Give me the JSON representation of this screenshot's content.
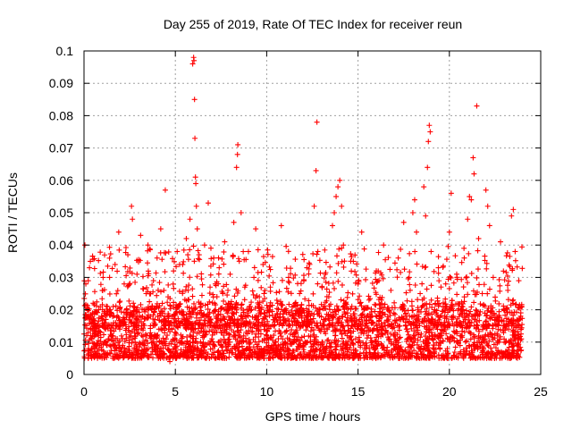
{
  "chart_data": {
    "type": "scatter",
    "title": "Day 255 of 2019, Rate Of TEC Index for receiver reun",
    "xlabel": "GPS time / hours",
    "ylabel": "ROTI / TECUs",
    "xlim": [
      0,
      25
    ],
    "ylim": [
      0,
      0.1
    ],
    "x_ticks": [
      0,
      5,
      10,
      15,
      20,
      25
    ],
    "x_tick_labels": [
      "0",
      "5",
      "10",
      "15",
      "20",
      "25"
    ],
    "y_ticks": [
      0,
      0.01,
      0.02,
      0.03,
      0.04,
      0.05,
      0.06,
      0.07,
      0.08,
      0.09,
      0.1
    ],
    "y_tick_labels": [
      "0",
      "0.01",
      "0.02",
      "0.03",
      "0.04",
      "0.05",
      "0.06",
      "0.07",
      "0.08",
      "0.09",
      "0.1"
    ],
    "grid": true,
    "marker": "+",
    "color": "#ff0000",
    "series": [
      {
        "points": [
          [
            0.05,
            0.04
          ],
          [
            0.1,
            0.028
          ],
          [
            0.15,
            0.012
          ],
          [
            0.2,
            0.018
          ],
          [
            0.25,
            0.008
          ],
          [
            0.3,
            0.033
          ],
          [
            0.35,
            0.014
          ],
          [
            0.4,
            0.011
          ],
          [
            0.5,
            0.022
          ],
          [
            0.6,
            0.015
          ],
          [
            0.7,
            0.009
          ],
          [
            0.8,
            0.02
          ],
          [
            0.9,
            0.013
          ],
          [
            1.0,
            0.026
          ],
          [
            1.1,
            0.01
          ],
          [
            1.2,
            0.017
          ],
          [
            1.3,
            0.006
          ],
          [
            1.4,
            0.03
          ],
          [
            1.5,
            0.012
          ],
          [
            1.6,
            0.021
          ],
          [
            1.7,
            0.034
          ],
          [
            1.8,
            0.008
          ],
          [
            1.9,
            0.044
          ],
          [
            2.0,
            0.016
          ],
          [
            2.1,
            0.011
          ],
          [
            2.2,
            0.028
          ],
          [
            2.3,
            0.019
          ],
          [
            2.4,
            0.037
          ],
          [
            2.5,
            0.013
          ],
          [
            2.6,
            0.052
          ],
          [
            2.65,
            0.048
          ],
          [
            2.7,
            0.022
          ],
          [
            2.8,
            0.01
          ],
          [
            2.9,
            0.031
          ],
          [
            3.0,
            0.015
          ],
          [
            3.1,
            0.043
          ],
          [
            3.2,
            0.018
          ],
          [
            3.3,
            0.009
          ],
          [
            3.4,
            0.025
          ],
          [
            3.5,
            0.04
          ],
          [
            3.6,
            0.012
          ],
          [
            3.7,
            0.02
          ],
          [
            3.8,
            0.029
          ],
          [
            3.9,
            0.007
          ],
          [
            4.0,
            0.036
          ],
          [
            4.1,
            0.014
          ],
          [
            4.2,
            0.045
          ],
          [
            4.3,
            0.019
          ],
          [
            4.45,
            0.057
          ],
          [
            4.5,
            0.011
          ],
          [
            4.6,
            0.024
          ],
          [
            4.7,
            0.004
          ],
          [
            4.8,
            0.016
          ],
          [
            4.9,
            0.032
          ],
          [
            5.0,
            0.013
          ],
          [
            5.1,
            0.038
          ],
          [
            5.2,
            0.021
          ],
          [
            5.3,
            0.01
          ],
          [
            5.4,
            0.034
          ],
          [
            5.5,
            0.017
          ],
          [
            5.6,
            0.042
          ],
          [
            5.7,
            0.026
          ],
          [
            5.8,
            0.048
          ],
          [
            5.9,
            0.015
          ],
          [
            5.95,
            0.096
          ],
          [
            6.0,
            0.098
          ],
          [
            6.02,
            0.097
          ],
          [
            6.05,
            0.085
          ],
          [
            6.07,
            0.073
          ],
          [
            6.1,
            0.061
          ],
          [
            6.12,
            0.059
          ],
          [
            6.15,
            0.052
          ],
          [
            6.2,
            0.045
          ],
          [
            6.3,
            0.037
          ],
          [
            6.4,
            0.022
          ],
          [
            6.5,
            0.012
          ],
          [
            6.6,
            0.04
          ],
          [
            6.7,
            0.018
          ],
          [
            6.8,
            0.053
          ],
          [
            6.9,
            0.027
          ],
          [
            7.0,
            0.011
          ],
          [
            7.1,
            0.036
          ],
          [
            7.2,
            0.02
          ],
          [
            7.3,
            0.015
          ],
          [
            7.4,
            0.033
          ],
          [
            7.5,
            0.009
          ],
          [
            7.6,
            0.025
          ],
          [
            7.7,
            0.041
          ],
          [
            7.8,
            0.014
          ],
          [
            7.9,
            0.022
          ],
          [
            8.0,
            0.031
          ],
          [
            8.1,
            0.018
          ],
          [
            8.2,
            0.047
          ],
          [
            8.3,
            0.012
          ],
          [
            8.35,
            0.064
          ],
          [
            8.4,
            0.068
          ],
          [
            8.42,
            0.071
          ],
          [
            8.5,
            0.035
          ],
          [
            8.6,
            0.05
          ],
          [
            8.7,
            0.016
          ],
          [
            8.8,
            0.027
          ],
          [
            8.9,
            0.01
          ],
          [
            9.0,
            0.038
          ],
          [
            9.1,
            0.021
          ],
          [
            9.2,
            0.013
          ],
          [
            9.3,
            0.03
          ],
          [
            9.4,
            0.045
          ],
          [
            9.5,
            0.017
          ],
          [
            9.6,
            0.024
          ],
          [
            9.7,
            0.008
          ],
          [
            9.8,
            0.034
          ],
          [
            9.9,
            0.019
          ],
          [
            10.0,
            0.012
          ],
          [
            10.2,
            0.027
          ],
          [
            10.4,
            0.015
          ],
          [
            10.6,
            0.022
          ],
          [
            10.8,
            0.046
          ],
          [
            11.0,
            0.01
          ],
          [
            11.2,
            0.03
          ],
          [
            11.4,
            0.018
          ],
          [
            11.6,
            0.013
          ],
          [
            11.8,
            0.025
          ],
          [
            12.0,
            0.009
          ],
          [
            12.2,
            0.033
          ],
          [
            12.4,
            0.017
          ],
          [
            12.6,
            0.052
          ],
          [
            12.7,
            0.063
          ],
          [
            12.75,
            0.078
          ],
          [
            12.8,
            0.038
          ],
          [
            12.9,
            0.02
          ],
          [
            13.0,
            0.014
          ],
          [
            13.2,
            0.031
          ],
          [
            13.4,
            0.024
          ],
          [
            13.6,
            0.046
          ],
          [
            13.7,
            0.05
          ],
          [
            13.8,
            0.055
          ],
          [
            13.9,
            0.058
          ],
          [
            14.0,
            0.06
          ],
          [
            14.1,
            0.052
          ],
          [
            14.2,
            0.04
          ],
          [
            14.3,
            0.022
          ],
          [
            14.4,
            0.012
          ],
          [
            14.6,
            0.035
          ],
          [
            14.8,
            0.018
          ],
          [
            15.0,
            0.028
          ],
          [
            15.2,
            0.044
          ],
          [
            15.4,
            0.015
          ],
          [
            15.6,
            0.023
          ],
          [
            15.8,
            0.01
          ],
          [
            16.0,
            0.032
          ],
          [
            16.2,
            0.019
          ],
          [
            16.4,
            0.04
          ],
          [
            16.6,
            0.013
          ],
          [
            16.8,
            0.026
          ],
          [
            17.0,
            0.008
          ],
          [
            17.2,
            0.036
          ],
          [
            17.4,
            0.021
          ],
          [
            17.5,
            0.047
          ],
          [
            17.6,
            0.015
          ],
          [
            17.8,
            0.03
          ],
          [
            18.0,
            0.05
          ],
          [
            18.1,
            0.054
          ],
          [
            18.2,
            0.044
          ],
          [
            18.4,
            0.025
          ],
          [
            18.6,
            0.058
          ],
          [
            18.7,
            0.049
          ],
          [
            18.8,
            0.064
          ],
          [
            18.85,
            0.072
          ],
          [
            18.9,
            0.077
          ],
          [
            18.95,
            0.075
          ],
          [
            19.0,
            0.038
          ],
          [
            19.2,
            0.02
          ],
          [
            19.4,
            0.033
          ],
          [
            19.6,
            0.014
          ],
          [
            19.8,
            0.028
          ],
          [
            20.0,
            0.044
          ],
          [
            20.1,
            0.056
          ],
          [
            20.2,
            0.018
          ],
          [
            20.4,
            0.031
          ],
          [
            20.6,
            0.012
          ],
          [
            20.8,
            0.039
          ],
          [
            21.0,
            0.048
          ],
          [
            21.1,
            0.055
          ],
          [
            21.2,
            0.054
          ],
          [
            21.3,
            0.067
          ],
          [
            21.35,
            0.062
          ],
          [
            21.5,
            0.083
          ],
          [
            21.6,
            0.042
          ],
          [
            21.8,
            0.025
          ],
          [
            22.0,
            0.057
          ],
          [
            22.1,
            0.052
          ],
          [
            22.2,
            0.046
          ],
          [
            22.4,
            0.03
          ],
          [
            22.6,
            0.017
          ],
          [
            22.8,
            0.041
          ],
          [
            23.0,
            0.01
          ],
          [
            23.2,
            0.026
          ],
          [
            23.4,
            0.049
          ],
          [
            23.5,
            0.051
          ],
          [
            23.6,
            0.038
          ],
          [
            23.8,
            0.029
          ],
          [
            23.9,
            0.018
          ]
        ]
      }
    ],
    "density_band": {
      "x_start": 0,
      "x_end": 24,
      "y_min": 0.005,
      "y_max": 0.022,
      "count": 2600
    }
  }
}
